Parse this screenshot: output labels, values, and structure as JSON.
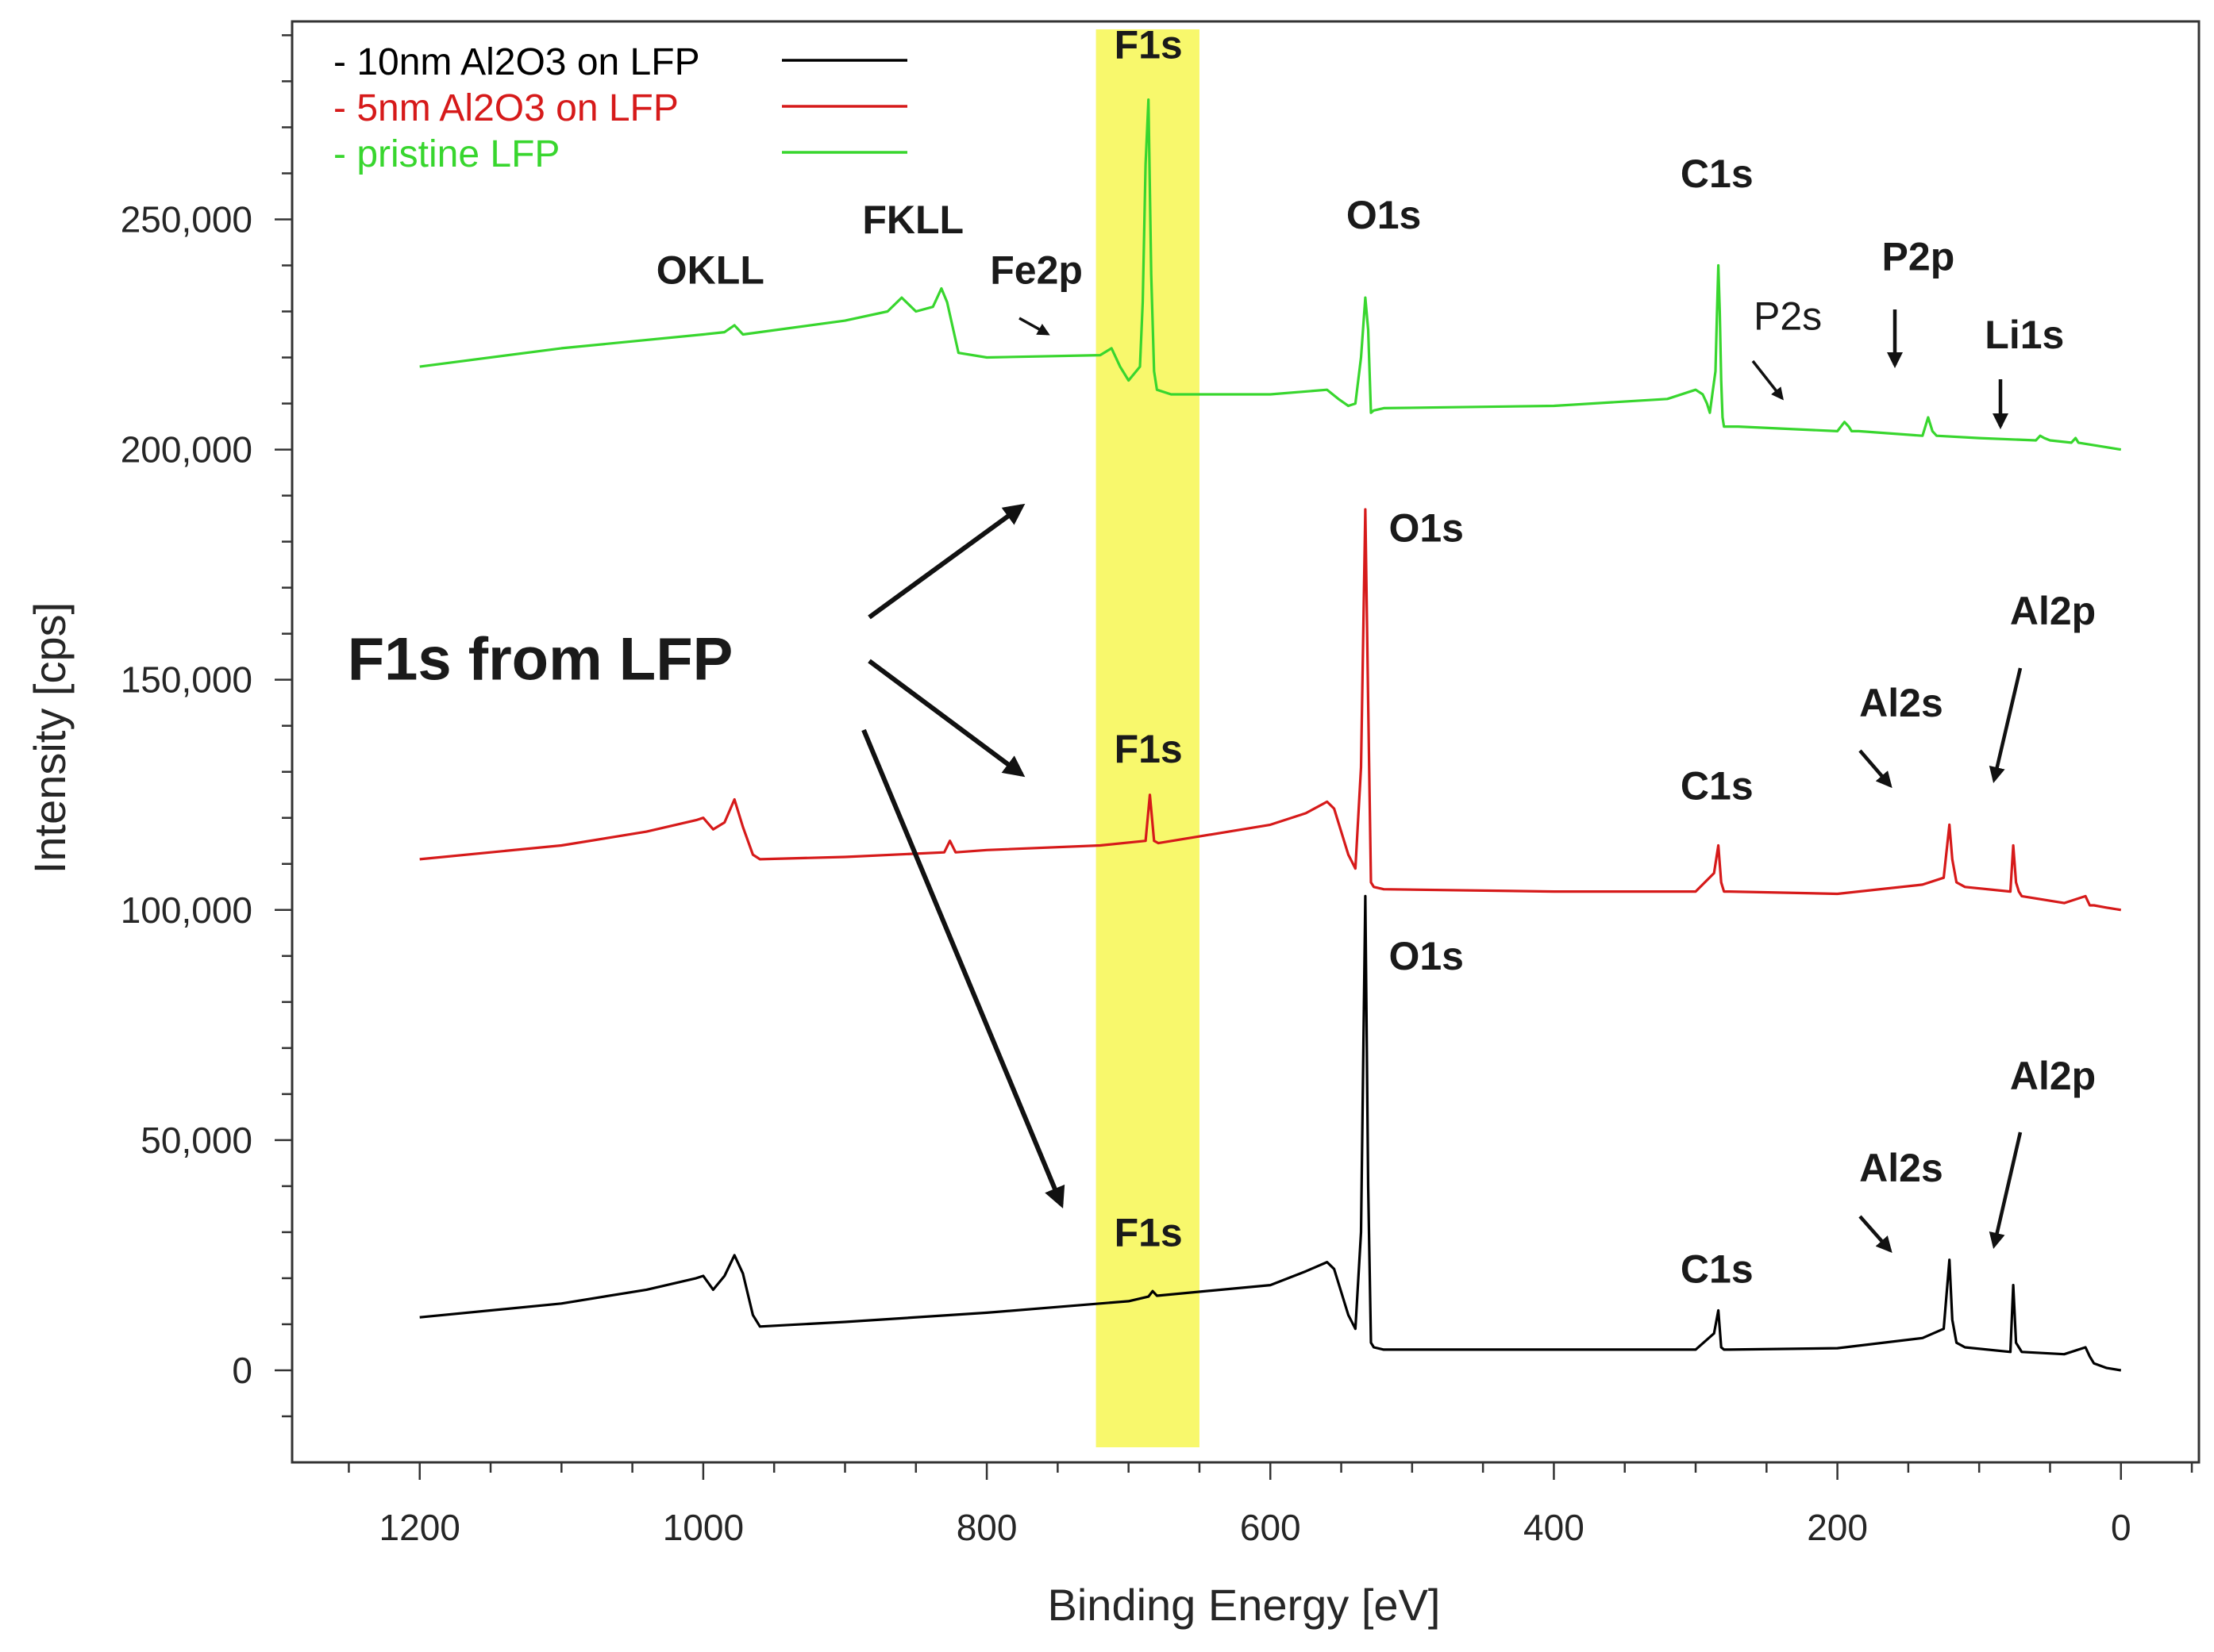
{
  "chart_data": {
    "type": "line",
    "title": "",
    "xlabel": "Binding Energy [eV]",
    "ylabel": "Intensity [cps]",
    "xlim": [
      1290,
      -55
    ],
    "ylim": [
      -20000,
      293000
    ],
    "x_ticks": [
      1200,
      1000,
      800,
      600,
      400,
      200,
      0
    ],
    "x_tick_labels": [
      "1200",
      "1000",
      "800",
      "600",
      "400",
      "200",
      "0"
    ],
    "y_ticks": [
      0,
      50000,
      100000,
      150000,
      200000,
      250000
    ],
    "y_tick_labels": [
      "0",
      "50,000",
      "100,000",
      "150,000",
      "200,000",
      "250,000"
    ],
    "grid": false,
    "legend_position": "top-left",
    "highlight_band": {
      "x_range": [
        723,
        650
      ],
      "color": "#f7f75c",
      "label": "F1s"
    },
    "series": [
      {
        "name": "- 10nm Al2O3 on LFP",
        "color": "#000000",
        "x": [
          1200,
          1100,
          1040,
          1005,
          1000,
          993,
          985,
          978,
          972,
          965,
          960,
          900,
          800,
          700,
          686,
          683,
          680,
          600,
          575,
          560,
          555,
          545,
          540,
          536,
          533,
          531,
          529,
          527,
          520,
          400,
          300,
          287,
          284,
          282,
          280,
          276,
          200,
          140,
          125,
          121,
          119,
          116,
          110,
          78,
          76,
          74,
          72,
          70,
          40,
          25,
          22,
          19,
          10,
          0
        ],
        "values": [
          11500,
          14500,
          17500,
          20000,
          20500,
          17500,
          20500,
          25000,
          21000,
          12000,
          9500,
          10500,
          12500,
          15000,
          16000,
          17200,
          16200,
          18500,
          21500,
          23500,
          22000,
          12000,
          9000,
          30000,
          103000,
          40000,
          6000,
          5000,
          4500,
          4500,
          4500,
          8000,
          13000,
          5000,
          4500,
          4500,
          4800,
          7000,
          9000,
          24000,
          11000,
          6000,
          5000,
          4000,
          18500,
          6000,
          5000,
          4000,
          3500,
          5000,
          3000,
          1500,
          500,
          0
        ]
      },
      {
        "name": "-  5nm Al2O3 on LFP",
        "color": "#d61a1a",
        "x": [
          1200,
          1100,
          1040,
          1005,
          1000,
          993,
          985,
          978,
          972,
          965,
          960,
          900,
          830,
          826,
          822,
          800,
          720,
          688,
          685,
          682,
          679,
          600,
          575,
          560,
          555,
          545,
          540,
          536,
          533,
          531,
          529,
          527,
          520,
          400,
          300,
          287,
          284,
          282,
          280,
          276,
          200,
          140,
          125,
          121,
          119,
          116,
          110,
          78,
          76,
          74,
          72,
          70,
          40,
          25,
          22,
          19,
          10,
          0
        ],
        "values": [
          111000,
          114000,
          117000,
          119500,
          120000,
          117500,
          119000,
          124000,
          118000,
          112000,
          111000,
          111500,
          112500,
          115000,
          112500,
          113000,
          114000,
          115000,
          125000,
          115000,
          114500,
          118500,
          121000,
          123500,
          122000,
          112000,
          109000,
          131000,
          187000,
          145000,
          106000,
          105000,
          104500,
          104000,
          104000,
          108000,
          114000,
          106000,
          104000,
          104000,
          103500,
          105500,
          107000,
          118500,
          111000,
          106000,
          105000,
          104000,
          114000,
          106000,
          104000,
          103000,
          101500,
          103000,
          101000,
          101000,
          100500,
          100000
        ]
      },
      {
        "name": "- pristine LFP",
        "color": "#38d62e",
        "x": [
          1200,
          1100,
          1000,
          985,
          978,
          972,
          900,
          870,
          860,
          850,
          838,
          835,
          832,
          828,
          820,
          800,
          720,
          712,
          706,
          700,
          692,
          690,
          688,
          686,
          684,
          682,
          680,
          670,
          600,
          560,
          552,
          545,
          540,
          536,
          533,
          531,
          529,
          527,
          520,
          400,
          320,
          300,
          295,
          292,
          290,
          288,
          286,
          285,
          284,
          283,
          282,
          281,
          280,
          276,
          270,
          200,
          195,
          192,
          190,
          185,
          140,
          136,
          133,
          130,
          100,
          60,
          57,
          54,
          50,
          35,
          32,
          30,
          10,
          0
        ],
        "values": [
          218000,
          222000,
          225000,
          225500,
          227000,
          225000,
          228000,
          230000,
          233000,
          230000,
          231000,
          233000,
          235000,
          232000,
          221000,
          220000,
          220500,
          222000,
          218000,
          215000,
          218000,
          232000,
          262000,
          276000,
          238000,
          217000,
          213000,
          212000,
          212000,
          213000,
          211000,
          209500,
          210000,
          220000,
          233000,
          226000,
          208000,
          208500,
          209000,
          209500,
          211000,
          213000,
          212000,
          210000,
          208000,
          212500,
          217000,
          229000,
          240000,
          230000,
          215000,
          207000,
          205000,
          205000,
          205000,
          204000,
          206000,
          205000,
          204000,
          204000,
          203000,
          207000,
          204000,
          203000,
          202500,
          202000,
          203000,
          202500,
          202000,
          201500,
          202500,
          201500,
          200500,
          200000
        ]
      }
    ],
    "annotations": [
      {
        "text": "OKLL",
        "x": 995,
        "y": 236000
      },
      {
        "text": "FKLL",
        "x": 852,
        "y": 247000
      },
      {
        "text": "Fe2p",
        "x": 765,
        "y": 236000
      },
      {
        "text": "F1s",
        "x": 686,
        "y": 285000
      },
      {
        "text": "O1s",
        "x": 520,
        "y": 248000
      },
      {
        "text": "C1s",
        "x": 285,
        "y": 257000
      },
      {
        "text": "P2s",
        "x": 235,
        "y": 226000
      },
      {
        "text": "P2p",
        "x": 143,
        "y": 239000
      },
      {
        "text": "Li1s",
        "x": 68,
        "y": 222000
      },
      {
        "text": "O1s",
        "x": 490,
        "y": 180000
      },
      {
        "text": "F1s",
        "x": 686,
        "y": 132000
      },
      {
        "text": "C1s",
        "x": 285,
        "y": 124000
      },
      {
        "text": "Al2s",
        "x": 155,
        "y": 142000
      },
      {
        "text": "Al2p",
        "x": 48,
        "y": 162000
      },
      {
        "text": "O1s",
        "x": 490,
        "y": 87000
      },
      {
        "text": "F1s",
        "x": 686,
        "y": 27000
      },
      {
        "text": "C1s",
        "x": 285,
        "y": 19000
      },
      {
        "text": "Al2s",
        "x": 155,
        "y": 41000
      },
      {
        "text": "Al2p",
        "x": 48,
        "y": 61000
      },
      {
        "text": "F1s from LFP",
        "x": 1115,
        "y": 150000
      }
    ]
  }
}
